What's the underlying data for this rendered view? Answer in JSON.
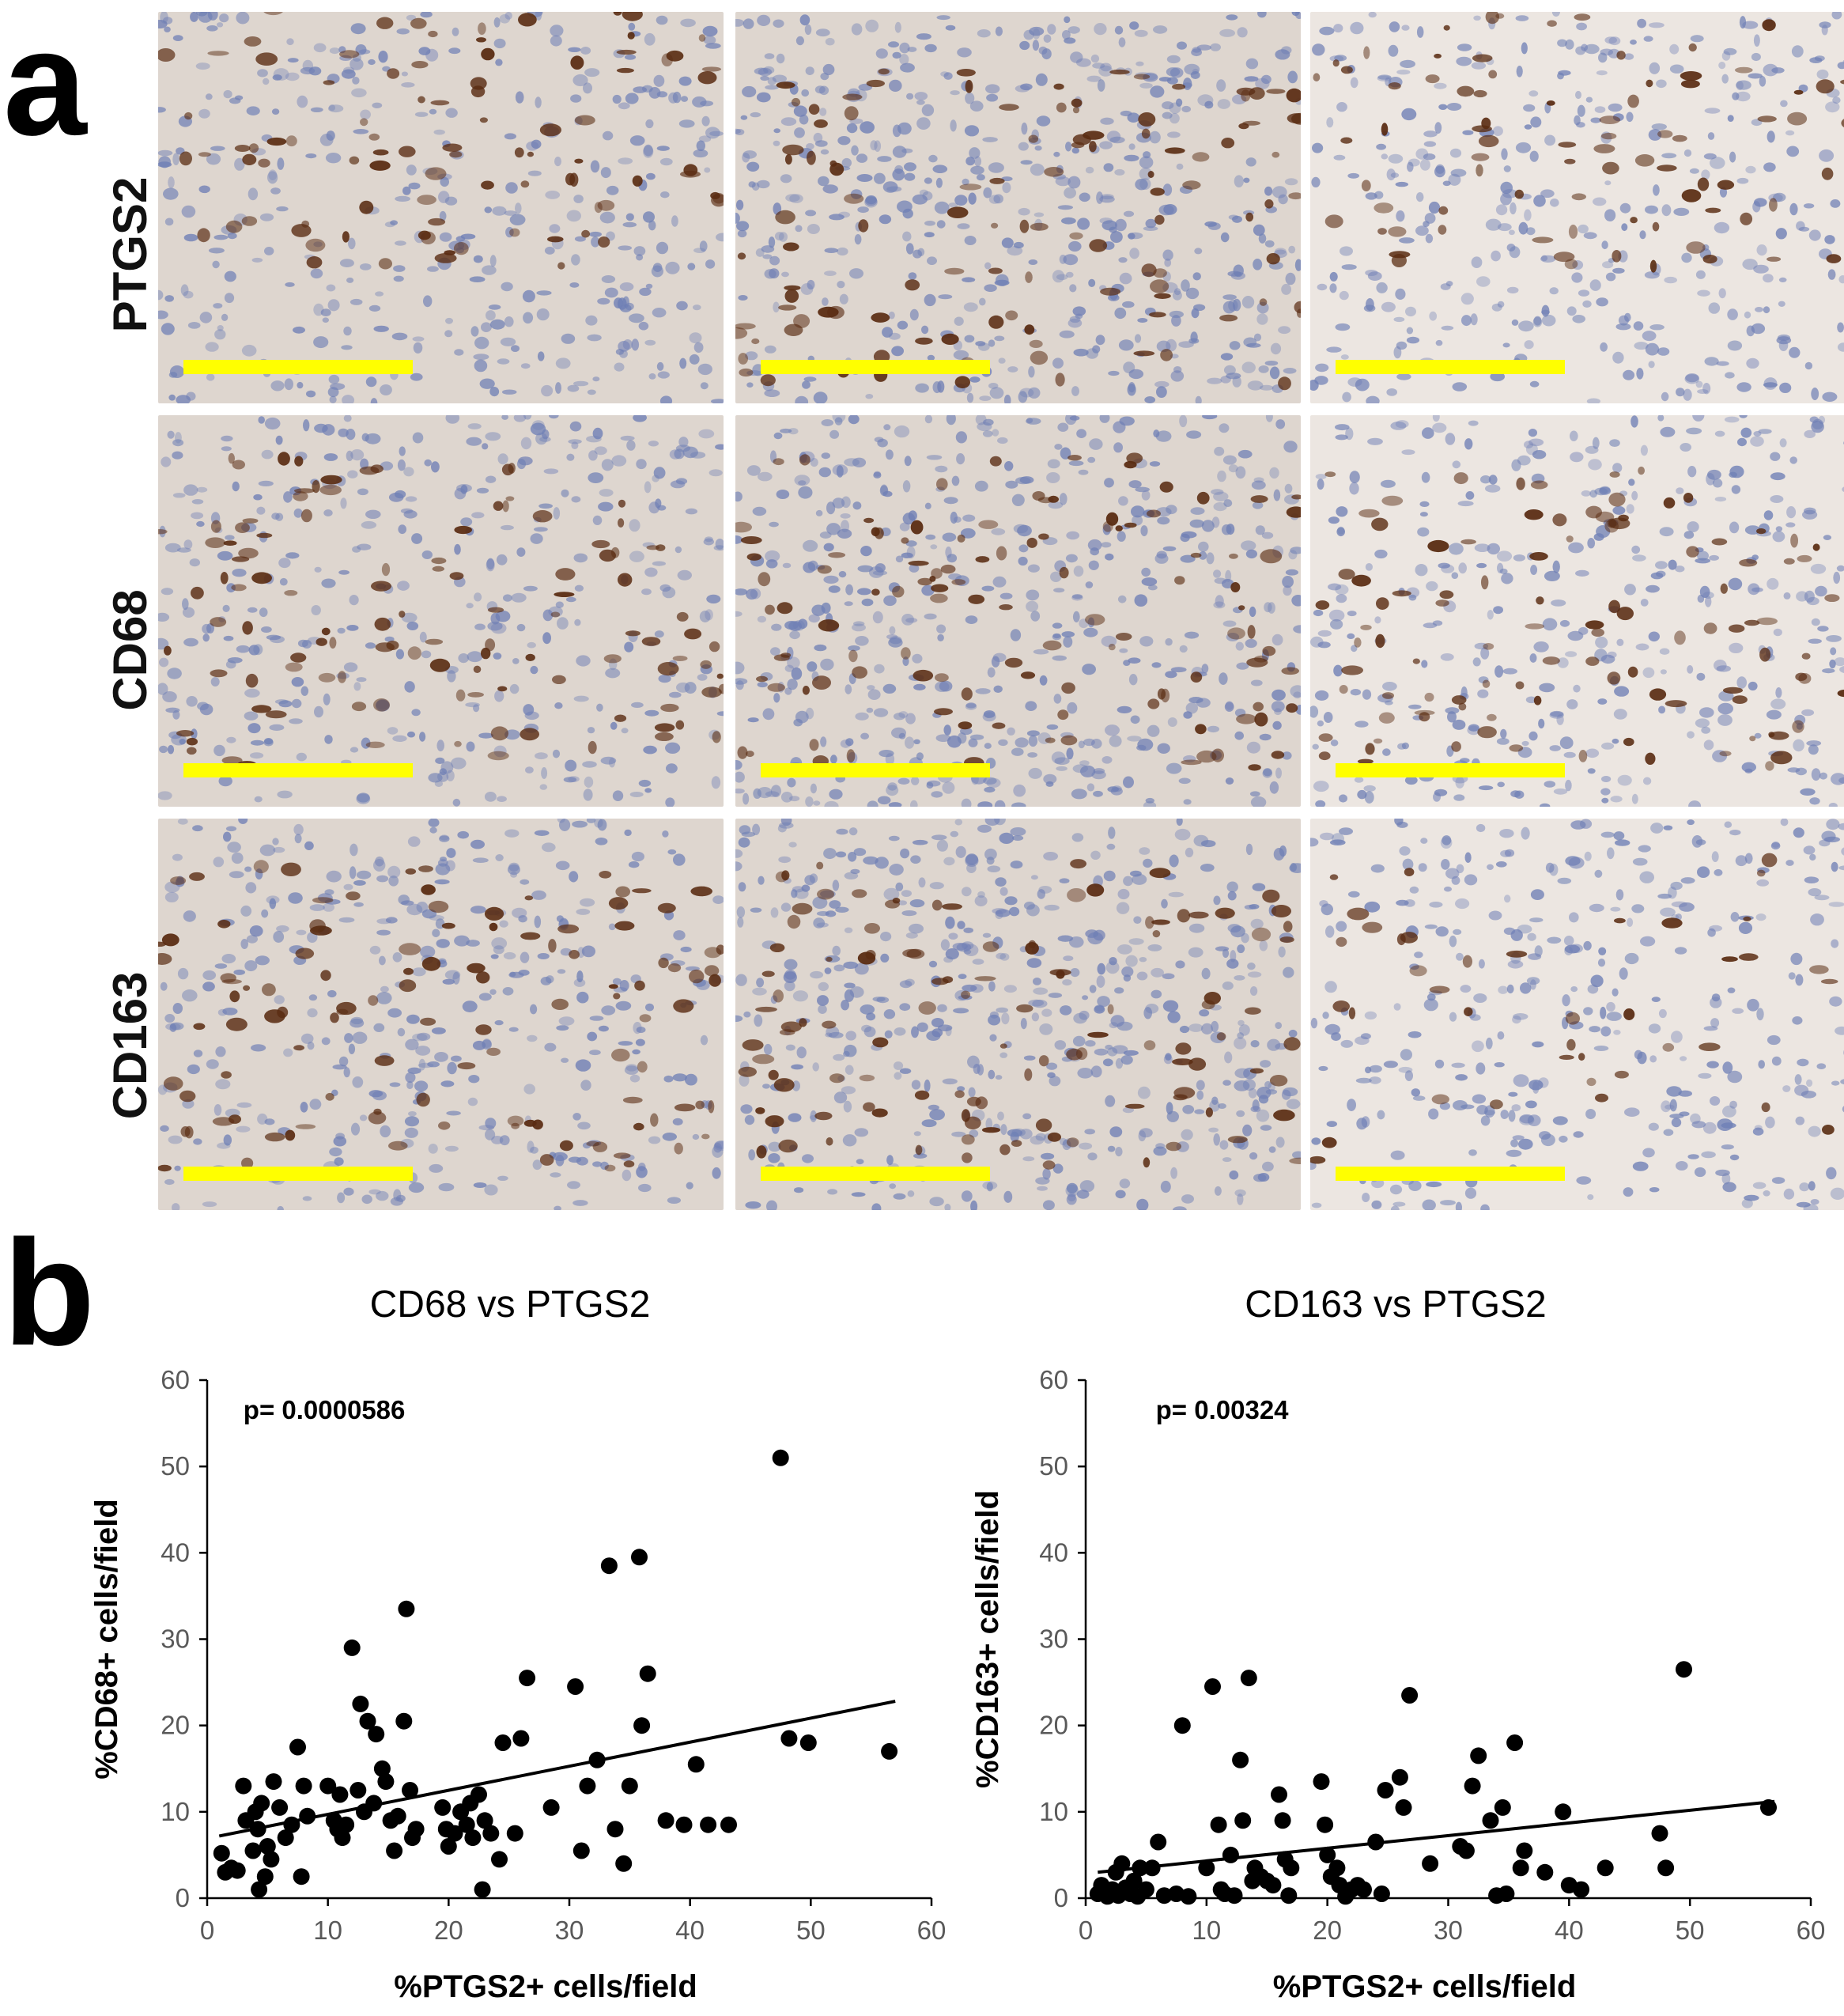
{
  "panels": {
    "a": "a",
    "b": "b"
  },
  "micrographs": {
    "row_labels": [
      "PTGS2",
      "CD68",
      "CD163"
    ],
    "scale_bar_color": "#ffff00",
    "stain_colors": {
      "hematoxylin": "#6f7fb5",
      "dab": "#5a2c12",
      "background_tissue": "#ded6cf"
    }
  },
  "chart_data": [
    {
      "type": "scatter",
      "title": "CD68 vs PTGS2",
      "xlabel": "%PTGS2+ cells/field",
      "ylabel": "%CD68+ cells/field",
      "annotation": "p= 0.0000586",
      "xlim": [
        0,
        60
      ],
      "ylim": [
        0,
        60
      ],
      "xticks": [
        "0",
        "10",
        "20",
        "30",
        "40",
        "50",
        "60"
      ],
      "yticks": [
        "0",
        "10",
        "20",
        "30",
        "40",
        "50",
        "60"
      ],
      "grid": false,
      "legend": "none",
      "point_color": "#000000",
      "points": [
        [
          1.2,
          5.2
        ],
        [
          1.5,
          3.0
        ],
        [
          2.0,
          3.5
        ],
        [
          2.5,
          3.2
        ],
        [
          3.0,
          13.0
        ],
        [
          3.2,
          9.0
        ],
        [
          3.8,
          5.5
        ],
        [
          4.0,
          10.0
        ],
        [
          4.2,
          8.0
        ],
        [
          4.3,
          1.0
        ],
        [
          4.5,
          11.0
        ],
        [
          4.8,
          2.5
        ],
        [
          5.0,
          6.0
        ],
        [
          5.3,
          4.5
        ],
        [
          5.5,
          13.5
        ],
        [
          6.0,
          10.5
        ],
        [
          6.5,
          7.0
        ],
        [
          7.0,
          8.5
        ],
        [
          7.5,
          17.5
        ],
        [
          7.8,
          2.5
        ],
        [
          8.0,
          13.0
        ],
        [
          8.3,
          9.5
        ],
        [
          10.0,
          13.0
        ],
        [
          10.5,
          9.0
        ],
        [
          10.8,
          8.0
        ],
        [
          11.0,
          12.0
        ],
        [
          11.2,
          7.0
        ],
        [
          11.5,
          8.5
        ],
        [
          12.0,
          29.0
        ],
        [
          12.5,
          12.5
        ],
        [
          12.7,
          22.5
        ],
        [
          13.0,
          10.0
        ],
        [
          13.3,
          20.5
        ],
        [
          13.8,
          11.0
        ],
        [
          14.0,
          19.0
        ],
        [
          14.5,
          15.0
        ],
        [
          14.8,
          13.5
        ],
        [
          15.2,
          9.0
        ],
        [
          15.5,
          5.5
        ],
        [
          15.8,
          9.5
        ],
        [
          16.3,
          20.5
        ],
        [
          16.5,
          33.5
        ],
        [
          16.8,
          12.5
        ],
        [
          17.0,
          7.0
        ],
        [
          17.3,
          8.0
        ],
        [
          19.5,
          10.5
        ],
        [
          19.8,
          8.0
        ],
        [
          20.0,
          6.0
        ],
        [
          20.5,
          7.5
        ],
        [
          21.0,
          10.0
        ],
        [
          21.5,
          8.5
        ],
        [
          21.8,
          11.0
        ],
        [
          22.0,
          7.0
        ],
        [
          22.5,
          12.0
        ],
        [
          22.8,
          1.0
        ],
        [
          23.0,
          9.0
        ],
        [
          23.5,
          7.5
        ],
        [
          24.2,
          4.5
        ],
        [
          24.5,
          18.0
        ],
        [
          25.5,
          7.5
        ],
        [
          26.0,
          18.5
        ],
        [
          26.5,
          25.5
        ],
        [
          28.5,
          10.5
        ],
        [
          30.5,
          24.5
        ],
        [
          31.0,
          5.5
        ],
        [
          31.5,
          13.0
        ],
        [
          32.3,
          16.0
        ],
        [
          33.3,
          38.5
        ],
        [
          33.8,
          8.0
        ],
        [
          34.5,
          4.0
        ],
        [
          35.0,
          13.0
        ],
        [
          35.8,
          39.5
        ],
        [
          36.0,
          20.0
        ],
        [
          36.5,
          26.0
        ],
        [
          38.0,
          9.0
        ],
        [
          39.5,
          8.5
        ],
        [
          40.5,
          15.5
        ],
        [
          41.5,
          8.5
        ],
        [
          43.2,
          8.5
        ],
        [
          47.5,
          51.0
        ],
        [
          48.2,
          18.5
        ],
        [
          49.8,
          18.0
        ],
        [
          56.5,
          17.0
        ]
      ],
      "trendline": [
        [
          1,
          7.2
        ],
        [
          57,
          22.8
        ]
      ]
    },
    {
      "type": "scatter",
      "title": "CD163 vs PTGS2",
      "xlabel": "%PTGS2+ cells/field",
      "ylabel": "%CD163+ cells/field",
      "annotation": "p= 0.00324",
      "xlim": [
        0,
        60
      ],
      "ylim": [
        0,
        60
      ],
      "xticks": [
        "0",
        "10",
        "20",
        "30",
        "40",
        "50",
        "60"
      ],
      "yticks": [
        "0",
        "10",
        "20",
        "30",
        "40",
        "50",
        "60"
      ],
      "grid": false,
      "legend": "none",
      "point_color": "#000000",
      "points": [
        [
          1.0,
          0.5
        ],
        [
          1.3,
          1.5
        ],
        [
          1.8,
          0.2
        ],
        [
          2.2,
          1.0
        ],
        [
          2.5,
          3.0
        ],
        [
          2.7,
          0.3
        ],
        [
          3.0,
          4.0
        ],
        [
          3.3,
          1.2
        ],
        [
          3.7,
          0.5
        ],
        [
          4.0,
          2.0
        ],
        [
          4.3,
          0.2
        ],
        [
          4.5,
          3.5
        ],
        [
          5.0,
          1.0
        ],
        [
          5.5,
          3.5
        ],
        [
          6.0,
          6.5
        ],
        [
          6.5,
          0.3
        ],
        [
          7.5,
          0.5
        ],
        [
          8.0,
          20.0
        ],
        [
          8.5,
          0.2
        ],
        [
          10.0,
          3.5
        ],
        [
          10.5,
          24.5
        ],
        [
          11.0,
          8.5
        ],
        [
          11.2,
          1.0
        ],
        [
          11.5,
          0.5
        ],
        [
          12.0,
          5.0
        ],
        [
          12.3,
          0.3
        ],
        [
          12.8,
          16.0
        ],
        [
          13.0,
          9.0
        ],
        [
          13.5,
          25.5
        ],
        [
          13.8,
          2.0
        ],
        [
          14.0,
          3.5
        ],
        [
          14.5,
          2.5
        ],
        [
          15.0,
          2.0
        ],
        [
          15.5,
          1.5
        ],
        [
          16.0,
          12.0
        ],
        [
          16.3,
          9.0
        ],
        [
          16.5,
          4.5
        ],
        [
          16.8,
          0.3
        ],
        [
          17.0,
          3.5
        ],
        [
          19.5,
          13.5
        ],
        [
          19.8,
          8.5
        ],
        [
          20.0,
          5.0
        ],
        [
          20.3,
          2.5
        ],
        [
          20.8,
          3.5
        ],
        [
          21.0,
          1.5
        ],
        [
          21.5,
          0.2
        ],
        [
          22.0,
          1.0
        ],
        [
          22.5,
          1.5
        ],
        [
          23.0,
          1.0
        ],
        [
          24.0,
          6.5
        ],
        [
          24.5,
          0.5
        ],
        [
          24.8,
          12.5
        ],
        [
          26.0,
          14.0
        ],
        [
          26.3,
          10.5
        ],
        [
          26.8,
          23.5
        ],
        [
          28.5,
          4.0
        ],
        [
          31.0,
          6.0
        ],
        [
          31.5,
          5.5
        ],
        [
          32.0,
          13.0
        ],
        [
          32.5,
          16.5
        ],
        [
          33.5,
          9.0
        ],
        [
          34.0,
          0.3
        ],
        [
          34.5,
          10.5
        ],
        [
          34.8,
          0.5
        ],
        [
          35.5,
          18.0
        ],
        [
          36.0,
          3.5
        ],
        [
          36.3,
          5.5
        ],
        [
          38.0,
          3.0
        ],
        [
          39.5,
          10.0
        ],
        [
          40.0,
          1.5
        ],
        [
          41.0,
          1.0
        ],
        [
          43.0,
          3.5
        ],
        [
          47.5,
          7.5
        ],
        [
          48.0,
          3.5
        ],
        [
          49.5,
          26.5
        ],
        [
          56.5,
          10.5
        ]
      ],
      "trendline": [
        [
          1,
          3.0
        ],
        [
          57,
          11.2
        ]
      ]
    }
  ]
}
